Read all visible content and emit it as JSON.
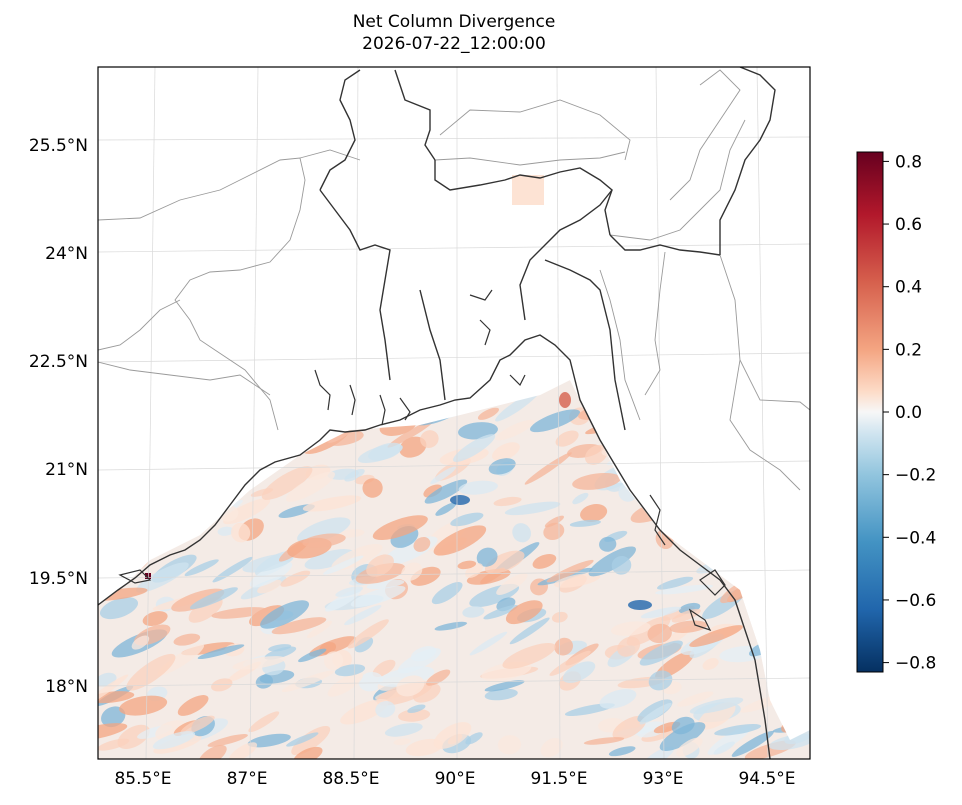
{
  "title": "Net Column Divergence",
  "subtitle": "2026-07-22_12:00:00",
  "map": {
    "lon_ticks": [
      "85.5°E",
      "87°E",
      "88.5°E",
      "90°E",
      "91.5°E",
      "93°E",
      "94.5°E"
    ],
    "lat_ticks": [
      "25.5°N",
      "24°N",
      "22.5°N",
      "21°N",
      "19.5°N",
      "18°N"
    ],
    "gridlines": true,
    "land_color": "#ffffff",
    "coastline_color": "#333333",
    "border_color": "#9a9a9a"
  },
  "colorbar": {
    "colormap": "RdBu_r",
    "range": [
      -0.83,
      0.83
    ],
    "ticks": [
      "0.8",
      "0.6",
      "0.4",
      "0.2",
      "0.0",
      "−0.2",
      "−0.4",
      "−0.6",
      "−0.8"
    ],
    "tick_values": [
      0.8,
      0.6,
      0.4,
      0.2,
      0.0,
      -0.2,
      -0.4,
      -0.6,
      -0.8
    ],
    "low_color": "#053061",
    "mid_color": "#f7f7f7",
    "high_color": "#67001f"
  }
}
